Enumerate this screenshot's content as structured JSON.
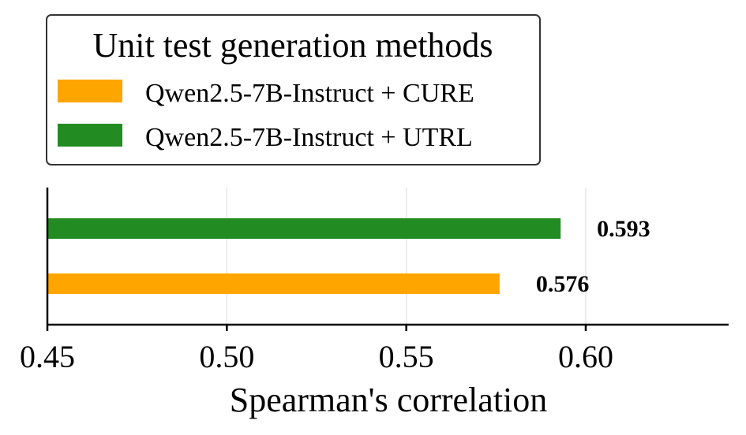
{
  "chart_data": {
    "type": "bar",
    "orientation": "horizontal",
    "title": "",
    "xlabel": "Spearman's correlation",
    "ylabel": "",
    "xlim": [
      0.45,
      0.64
    ],
    "xticks": [
      0.45,
      0.5,
      0.55,
      0.6
    ],
    "xtick_labels": [
      "0.45",
      "0.50",
      "0.55",
      "0.60"
    ],
    "grid": "vertical",
    "legend": {
      "title": "Unit test generation methods",
      "placement": "top-left"
    },
    "series": [
      {
        "name": "Qwen2.5-7B-Instruct + CURE",
        "value": 0.576,
        "label": "0.576",
        "color": "#FFA500"
      },
      {
        "name": "Qwen2.5-7B-Instruct + UTRL",
        "value": 0.593,
        "label": "0.593",
        "color": "#228B22"
      }
    ]
  }
}
